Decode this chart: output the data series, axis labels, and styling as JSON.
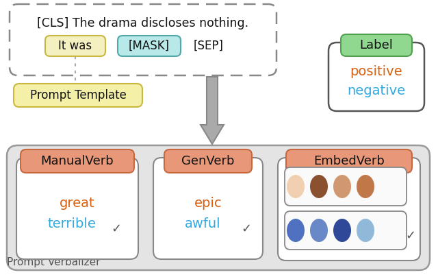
{
  "bg_color": "#ffffff",
  "fig_width": 6.4,
  "fig_height": 4.04,
  "top_box": {
    "text_line1": "[CLS] The drama discloses nothing.",
    "itwas_color": "#f5f0c0",
    "itwas_border": "#c8b840",
    "mask_color": "#b8e8e8",
    "mask_border": "#50a8a8"
  },
  "prompt_template_box": {
    "text": "Prompt Template",
    "bg": "#f5f0a8",
    "border": "#c8b840"
  },
  "label_box": {
    "title": "Label",
    "title_bg": "#90d890",
    "title_border": "#50a050",
    "positive_color": "#d86010",
    "negative_color": "#30a8e0",
    "box_bg": "#ffffff",
    "box_border": "#555555"
  },
  "verbalizer_box": {
    "bg": "#e4e4e4",
    "border": "#999999",
    "label": "Prompt Verbalizer"
  },
  "manual_verb": {
    "title": "ManualVerb",
    "title_bg": "#e89878",
    "title_border": "#c86840",
    "great_color": "#d86010",
    "terrible_color": "#30a8e0",
    "box_bg": "#ffffff",
    "box_border": "#888888"
  },
  "gen_verb": {
    "title": "GenVerb",
    "title_bg": "#e89878",
    "title_border": "#c86840",
    "epic_color": "#d86010",
    "awful_color": "#30a8e0",
    "box_bg": "#ffffff",
    "box_border": "#888888"
  },
  "embed_verb": {
    "title": "EmbedVerb",
    "title_bg": "#e89878",
    "title_border": "#c86840",
    "box_bg": "#ffffff",
    "box_border": "#888888",
    "warm_colors": [
      "#f0d0b0",
      "#8a5030",
      "#d09870",
      "#c07848"
    ],
    "cool_colors": [
      "#5070c0",
      "#6888c8",
      "#304898",
      "#90b8d8"
    ]
  },
  "arrow_color": "#aaaaaa",
  "arrow_edge": "#888888",
  "check_color": "#555555",
  "text_color": "#111111"
}
